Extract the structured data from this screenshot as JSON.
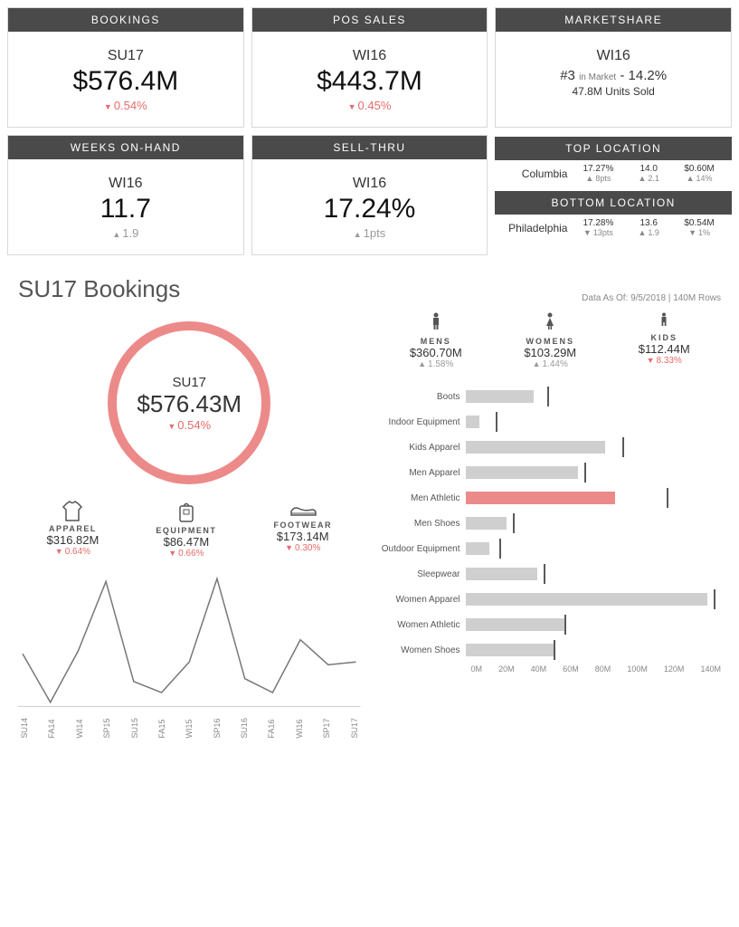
{
  "cards": {
    "bookings": {
      "title": "BOOKINGS",
      "period": "SU17",
      "value": "$576.4M",
      "delta": "0.54%",
      "dir": "down"
    },
    "pos": {
      "title": "POS SALES",
      "period": "WI16",
      "value": "$443.7M",
      "delta": "0.45%",
      "dir": "down"
    },
    "marketshare": {
      "title": "MARKETSHARE",
      "period": "WI16",
      "rank": "#3",
      "in_market": "in Market",
      "pct": "14.2%",
      "units_n": "47.8M",
      "units_t": "Units Sold"
    },
    "woh": {
      "title": "WEEKS ON-HAND",
      "period": "WI16",
      "value": "11.7",
      "delta": "1.9",
      "dir": "up"
    },
    "sellthru": {
      "title": "SELL-THRU",
      "period": "WI16",
      "value": "17.24%",
      "delta": "1pts",
      "dir": "up"
    },
    "locations": {
      "top_title": "TOP LOCATION",
      "top": {
        "name": "Columbia",
        "a": "17.27%",
        "ad": "8pts",
        "adir": "up",
        "b": "14.0",
        "bd": "2.1",
        "bdir": "up",
        "c": "$0.60M",
        "cd": "14%",
        "cdir": "up"
      },
      "bot_title": "BOTTOM LOCATION",
      "bot": {
        "name": "Philadelphia",
        "a": "17.28%",
        "ad": "13pts",
        "adir": "down",
        "b": "13.6",
        "bd": "1.9",
        "bdir": "up",
        "c": "$0.54M",
        "cd": "1%",
        "cdir": "down"
      }
    }
  },
  "detail": {
    "title": "SU17 Bookings",
    "asof_label": "Data As Of:",
    "asof_date": "9/5/2018",
    "asof_rows": "140M Rows",
    "circle": {
      "period": "SU17",
      "value": "$576.43M",
      "delta": "0.54%",
      "dir": "down",
      "ring_color": "#ec8a89"
    },
    "categories": [
      {
        "label": "APPAREL",
        "value": "$316.82M",
        "delta": "0.64%",
        "dir": "down"
      },
      {
        "label": "EQUIPMENT",
        "value": "$86.47M",
        "delta": "0.66%",
        "dir": "down"
      },
      {
        "label": "FOOTWEAR",
        "value": "$173.14M",
        "delta": "0.30%",
        "dir": "down"
      }
    ],
    "line": {
      "ticks": [
        "SU14",
        "FA14",
        "WI14",
        "SP15",
        "SU15",
        "FA15",
        "WI15",
        "SP16",
        "SU16",
        "FA16",
        "WI16",
        "SP17",
        "SU17"
      ],
      "y": [
        38,
        3,
        40,
        90,
        18,
        10,
        32,
        92,
        20,
        10,
        48,
        30,
        32
      ],
      "stroke": "#777777"
    },
    "segments": [
      {
        "label": "MENS",
        "value": "$360.70M",
        "delta": "1.58%",
        "dir": "up",
        "upcolor": "#9a9a9a"
      },
      {
        "label": "WOMENS",
        "value": "$103.29M",
        "delta": "1.44%",
        "dir": "up",
        "upcolor": "#9a9a9a"
      },
      {
        "label": "KIDS",
        "value": "$112.44M",
        "delta": "8.33%",
        "dir": "down"
      }
    ],
    "bars": {
      "max": 150,
      "xticks": [
        "0M",
        "20M",
        "40M",
        "60M",
        "80M",
        "100M",
        "120M",
        "140M"
      ],
      "rows": [
        {
          "label": "Boots",
          "value": 40,
          "mark": 48,
          "hl": false
        },
        {
          "label": "Indoor Equipment",
          "value": 8,
          "mark": 18,
          "hl": false
        },
        {
          "label": "Kids Apparel",
          "value": 82,
          "mark": 92,
          "hl": false
        },
        {
          "label": "Men Apparel",
          "value": 66,
          "mark": 70,
          "hl": false
        },
        {
          "label": "Men Athletic",
          "value": 88,
          "mark": 118,
          "hl": true
        },
        {
          "label": "Men Shoes",
          "value": 24,
          "mark": 28,
          "hl": false
        },
        {
          "label": "Outdoor Equipment",
          "value": 14,
          "mark": 20,
          "hl": false
        },
        {
          "label": "Sleepwear",
          "value": 42,
          "mark": 46,
          "hl": false
        },
        {
          "label": "Women Apparel",
          "value": 142,
          "mark": 146,
          "hl": false
        },
        {
          "label": "Women Athletic",
          "value": 58,
          "mark": 58,
          "hl": false
        },
        {
          "label": "Women Shoes",
          "value": 52,
          "mark": 52,
          "hl": false
        }
      ],
      "bar_color": "#cfcfcf",
      "hl_color": "#ec8a89",
      "mark_color": "#5a5a5a"
    }
  }
}
